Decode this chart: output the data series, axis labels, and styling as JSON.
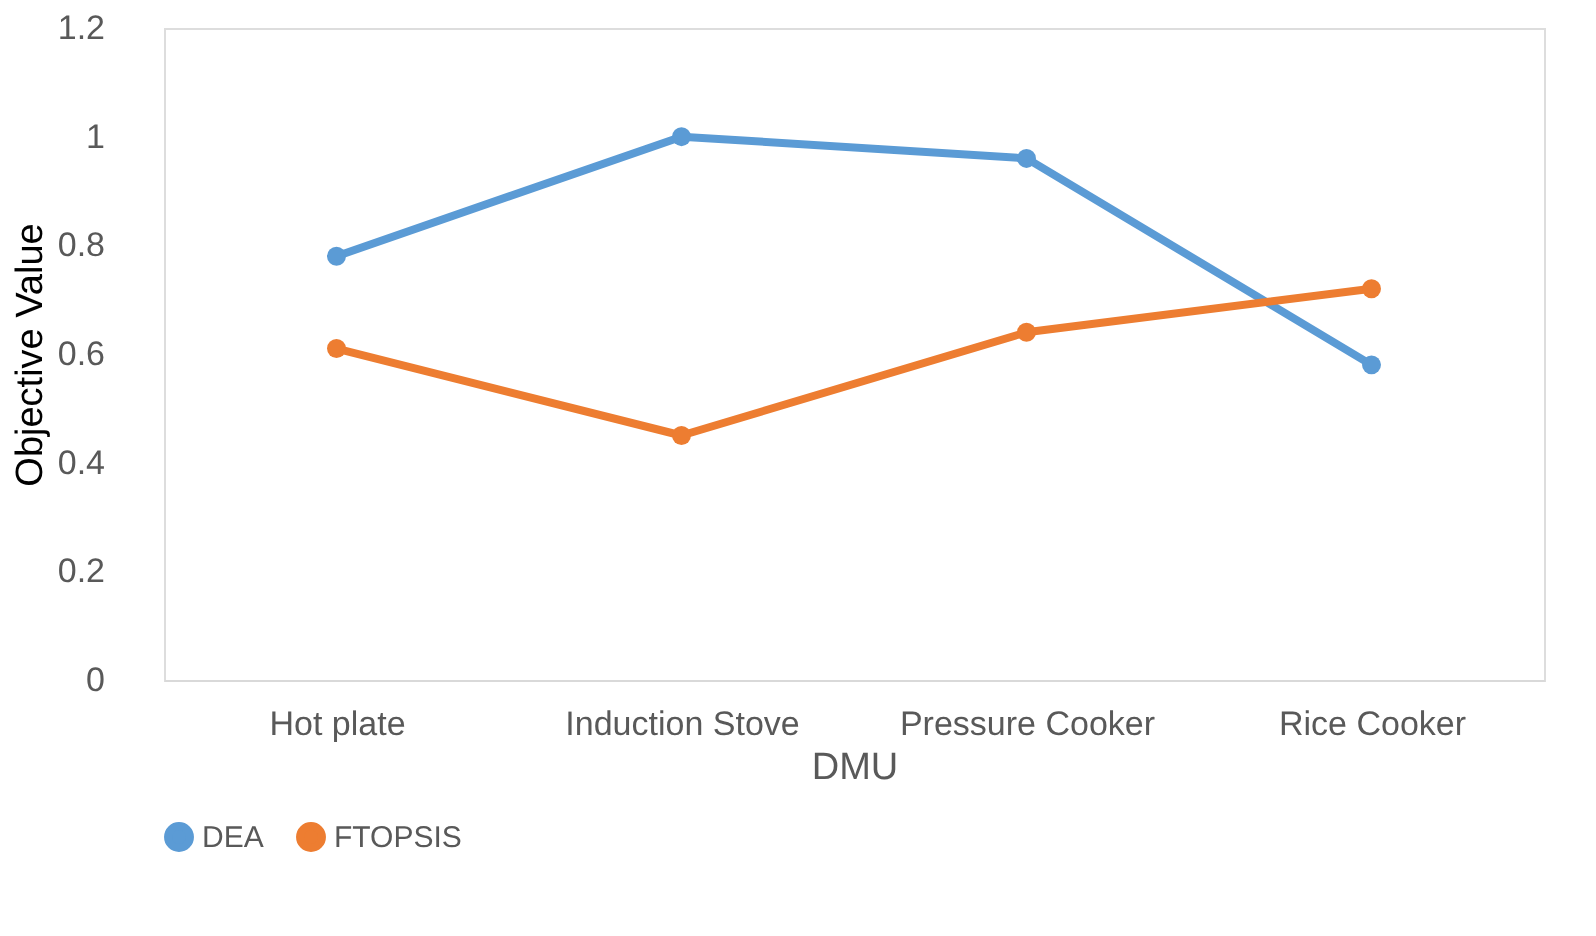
{
  "chart_data": {
    "type": "line",
    "xlabel": "DMU",
    "ylabel": "Objective Value",
    "categories": [
      "Hot plate",
      "Induction Stove",
      "Pressure Cooker",
      "Rice Cooker"
    ],
    "series": [
      {
        "name": "DEA",
        "color": "#5b9bd5",
        "values": [
          0.78,
          1.0,
          0.96,
          0.58
        ]
      },
      {
        "name": "FTOPSIS",
        "color": "#ed7d31",
        "values": [
          0.61,
          0.45,
          0.64,
          0.72
        ]
      }
    ],
    "ylim": [
      0,
      1.2
    ],
    "yticks": [
      0,
      0.2,
      0.4,
      0.6,
      0.8,
      1,
      1.2
    ],
    "grid": false,
    "legend": "bottom",
    "marker": "circle",
    "line_style": "solid"
  }
}
